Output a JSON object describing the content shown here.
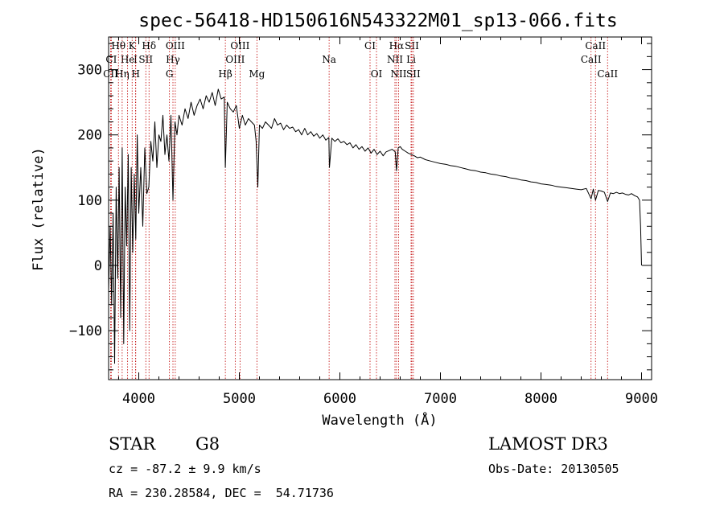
{
  "chart_data": {
    "type": "line",
    "title": "spec-56418-HD150616N543322M01_sp13-066.fits",
    "xlabel": "Wavelength (Å)",
    "ylabel": "Flux (relative)",
    "xlim": [
      3700,
      9100
    ],
    "ylim": [
      -175,
      350
    ],
    "x_ticks": [
      4000,
      5000,
      6000,
      7000,
      8000,
      9000
    ],
    "y_ticks": [
      -100,
      0,
      100,
      200,
      300
    ],
    "series": [
      {
        "name": "flux",
        "x": [
          3700,
          3715,
          3730,
          3745,
          3760,
          3775,
          3790,
          3805,
          3820,
          3835,
          3850,
          3865,
          3880,
          3895,
          3910,
          3925,
          3940,
          3955,
          3970,
          3985,
          4000,
          4020,
          4040,
          4060,
          4080,
          4100,
          4120,
          4140,
          4160,
          4180,
          4200,
          4220,
          4240,
          4260,
          4280,
          4300,
          4320,
          4340,
          4360,
          4380,
          4400,
          4430,
          4460,
          4490,
          4520,
          4550,
          4580,
          4610,
          4640,
          4670,
          4700,
          4730,
          4760,
          4790,
          4820,
          4850,
          4861,
          4880,
          4910,
          4940,
          4970,
          5000,
          5030,
          5060,
          5090,
          5120,
          5150,
          5167,
          5184,
          5200,
          5230,
          5260,
          5290,
          5320,
          5350,
          5380,
          5410,
          5440,
          5470,
          5500,
          5530,
          5560,
          5590,
          5620,
          5650,
          5680,
          5710,
          5740,
          5770,
          5800,
          5830,
          5860,
          5890,
          5896,
          5920,
          5950,
          5980,
          6010,
          6040,
          6070,
          6100,
          6130,
          6160,
          6190,
          6220,
          6250,
          6280,
          6310,
          6340,
          6370,
          6400,
          6430,
          6460,
          6490,
          6520,
          6550,
          6563,
          6580,
          6600,
          6620,
          6650,
          6680,
          6710,
          6740,
          6770,
          6800,
          6850,
          6900,
          6950,
          7000,
          7050,
          7100,
          7150,
          7200,
          7250,
          7300,
          7350,
          7400,
          7450,
          7500,
          7550,
          7600,
          7650,
          7700,
          7750,
          7800,
          7850,
          7900,
          7950,
          8000,
          8050,
          8100,
          8150,
          8200,
          8250,
          8300,
          8350,
          8400,
          8450,
          8498,
          8520,
          8542,
          8570,
          8600,
          8630,
          8662,
          8690,
          8720,
          8750,
          8780,
          8810,
          8840,
          8870,
          8900,
          8930,
          8960,
          8980,
          8990,
          9000
        ],
        "y": [
          -40,
          60,
          -60,
          80,
          -150,
          120,
          -20,
          150,
          -80,
          180,
          -120,
          120,
          30,
          170,
          -100,
          150,
          20,
          140,
          40,
          200,
          80,
          150,
          60,
          180,
          110,
          120,
          190,
          160,
          220,
          150,
          200,
          190,
          230,
          170,
          200,
          160,
          230,
          100,
          220,
          200,
          230,
          215,
          240,
          225,
          250,
          230,
          245,
          255,
          240,
          260,
          250,
          265,
          245,
          270,
          255,
          258,
          150,
          250,
          240,
          235,
          245,
          210,
          230,
          215,
          225,
          220,
          215,
          190,
          120,
          215,
          210,
          220,
          215,
          210,
          225,
          215,
          218,
          208,
          215,
          210,
          212,
          205,
          208,
          200,
          210,
          200,
          205,
          198,
          202,
          195,
          200,
          192,
          196,
          150,
          195,
          190,
          194,
          188,
          190,
          185,
          188,
          180,
          185,
          178,
          182,
          175,
          180,
          172,
          178,
          170,
          175,
          168,
          174,
          176,
          178,
          174,
          145,
          180,
          182,
          178,
          175,
          172,
          170,
          168,
          165,
          166,
          162,
          160,
          158,
          156,
          155,
          153,
          152,
          150,
          148,
          146,
          145,
          143,
          142,
          140,
          139,
          137,
          136,
          134,
          133,
          131,
          130,
          128,
          127,
          125,
          124,
          123,
          121,
          120,
          119,
          118,
          117,
          116,
          118,
          102,
          117,
          100,
          115,
          114,
          112,
          98,
          111,
          110,
          112,
          110,
          111,
          109,
          108,
          110,
          107,
          105,
          100,
          60,
          0
        ]
      }
    ],
    "spectral_lines": [
      {
        "label": "Hθ",
        "x": 3798,
        "row": 1
      },
      {
        "label": "K",
        "x": 3934,
        "row": 1
      },
      {
        "label": "Hδ",
        "x": 4102,
        "row": 1
      },
      {
        "label": "OIII",
        "x": 4363,
        "row": 1
      },
      {
        "label": "OIII",
        "x": 5007,
        "row": 1
      },
      {
        "label": "CI",
        "x": 6300,
        "row": 1
      },
      {
        "label": "Hα",
        "x": 6563,
        "row": 1
      },
      {
        "label": "SII",
        "x": 6716,
        "row": 1
      },
      {
        "label": "CaII",
        "x": 8542,
        "row": 1
      },
      {
        "label": "CI",
        "x": 3727,
        "row": 2
      },
      {
        "label": "He",
        "x": 3889,
        "row": 2
      },
      {
        "label": "I",
        "x": 3968,
        "row": 2
      },
      {
        "label": "SII",
        "x": 4070,
        "row": 2
      },
      {
        "label": "Hγ",
        "x": 4340,
        "row": 2
      },
      {
        "label": "OIII",
        "x": 4959,
        "row": 2
      },
      {
        "label": "Na",
        "x": 5893,
        "row": 2
      },
      {
        "label": "NII",
        "x": 6548,
        "row": 2
      },
      {
        "label": "Li",
        "x": 6708,
        "row": 2
      },
      {
        "label": "CaII",
        "x": 8498,
        "row": 2
      },
      {
        "label": "CII",
        "x": 3720,
        "row": 3
      },
      {
        "label": "Hη",
        "x": 3835,
        "row": 3
      },
      {
        "label": "H",
        "x": 3970,
        "row": 3
      },
      {
        "label": "G",
        "x": 4305,
        "row": 3
      },
      {
        "label": "Hβ",
        "x": 4861,
        "row": 3
      },
      {
        "label": "Mg",
        "x": 5175,
        "row": 3
      },
      {
        "label": "OI",
        "x": 6364,
        "row": 3
      },
      {
        "label": "NII",
        "x": 6584,
        "row": 3
      },
      {
        "label": "SII",
        "x": 6731,
        "row": 3
      },
      {
        "label": "CaII",
        "x": 8662,
        "row": 3
      }
    ]
  },
  "info": {
    "object_type": "STAR",
    "subclass": "G8",
    "survey": "LAMOST DR3",
    "redshift": "cz = -87.2 ± 9.9 km/s",
    "obs_date": "Obs-Date: 20130505",
    "coordinates": "RA = 230.28584, DEC =  54.71736"
  }
}
